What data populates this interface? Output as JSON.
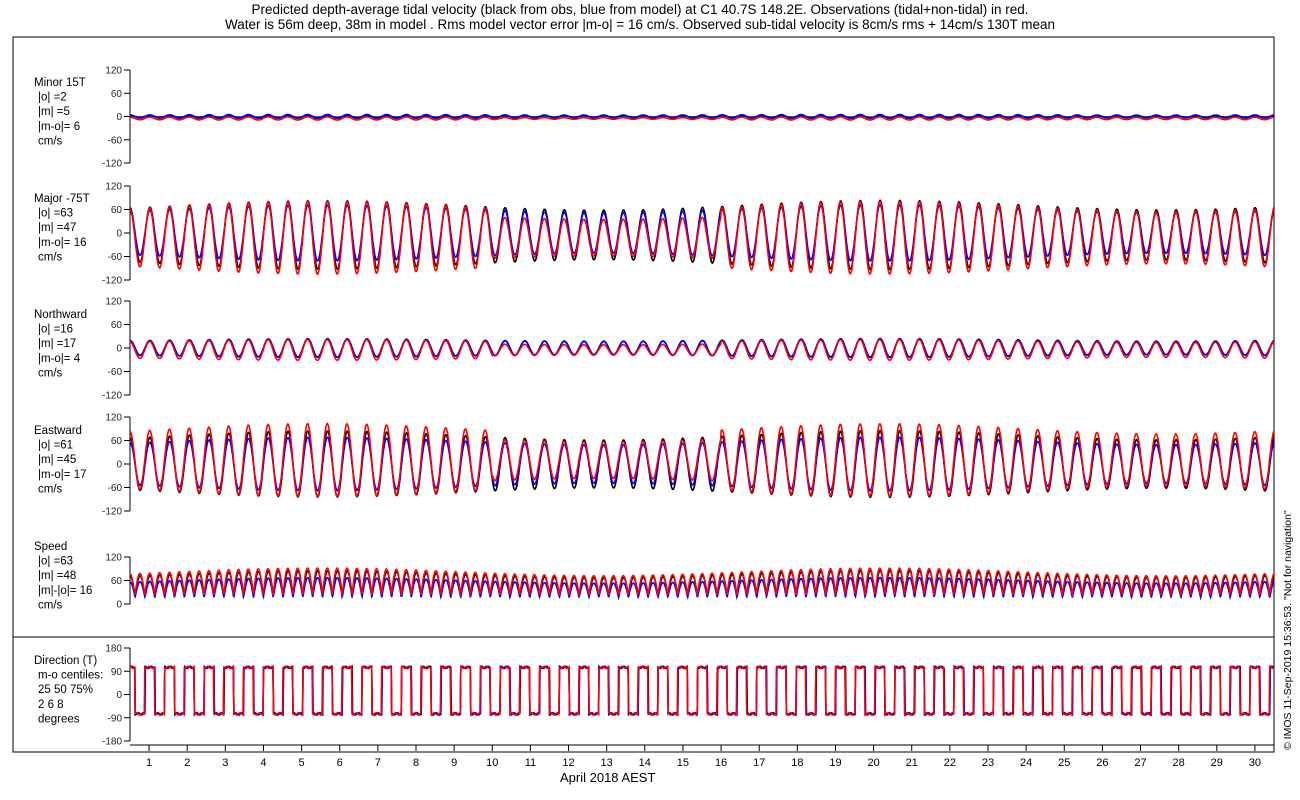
{
  "title": {
    "line1": "Predicted depth-average tidal velocity (black from obs, blue from model) at C1 40.7S 148.2E. Observations (tidal+non-tidal) in red.",
    "line2": "Water is 56m deep, 38m in model . Rms model vector error |m-o| = 16 cm/s. Observed sub-tidal velocity is 8cm/s rms + 14cm/s 130T mean"
  },
  "x_axis_label": "April 2018 AEST",
  "copyright": "© IMOS 11-Sep-2019 15:36:53. \"Not for navigation\"",
  "colors": {
    "observed_tidal": "#000000",
    "model": "#0000ff",
    "observed_total": "#ff0000"
  },
  "chart_data": [
    {
      "type": "line",
      "panel": "minor",
      "labels": [
        "Minor 15T",
        "|o| =2",
        "|m| =5",
        "|m-o|= 6",
        "cm/s"
      ],
      "ylim": [
        -120,
        120
      ],
      "yticks": [
        "120",
        "60",
        "0",
        "-60",
        "-120"
      ],
      "x": "day of April 2018, 0.5 to 30.5",
      "series": [
        {
          "color": "#000000",
          "amplitude": 2,
          "mean": 0
        },
        {
          "color": "#0000ff",
          "amplitude": 5,
          "mean": 0
        },
        {
          "color": "#ff0000",
          "amplitude": 4,
          "mean": -5
        }
      ]
    },
    {
      "type": "line",
      "panel": "major",
      "labels": [
        "Major -75T",
        "|o| =63",
        "|m| =47",
        "|m-o|= 16",
        "cm/s"
      ],
      "ylim": [
        -120,
        120
      ],
      "yticks": [
        "120",
        "60",
        "0",
        "-60",
        "-120"
      ],
      "series": [
        {
          "color": "#000000",
          "amplitude": 88,
          "mean": -5
        },
        {
          "color": "#0000ff",
          "amplitude": 68,
          "mean": 0
        },
        {
          "color": "#ff0000",
          "amplitude": 88,
          "mean": -12
        }
      ]
    },
    {
      "type": "line",
      "panel": "northward",
      "labels": [
        "Northward",
        "|o| =16",
        "|m| =17",
        "|m-o|= 4",
        "cm/s"
      ],
      "ylim": [
        -120,
        120
      ],
      "yticks": [
        "120",
        "60",
        "0",
        "-60",
        "-120"
      ],
      "series": [
        {
          "color": "#000000",
          "amplitude": 24,
          "mean": 0
        },
        {
          "color": "#0000ff",
          "amplitude": 22,
          "mean": 0
        },
        {
          "color": "#ff0000",
          "amplitude": 25,
          "mean": -5
        }
      ]
    },
    {
      "type": "line",
      "panel": "eastward",
      "labels": [
        "Eastward",
        "|o| =61",
        "|m| =45",
        "|m-o|= 17",
        "cm/s"
      ],
      "ylim": [
        -120,
        120
      ],
      "yticks": [
        "120",
        "60",
        "0",
        "-60",
        "-120"
      ],
      "series": [
        {
          "color": "#000000",
          "amplitude": 85,
          "mean": 0
        },
        {
          "color": "#0000ff",
          "amplitude": 65,
          "mean": 0
        },
        {
          "color": "#ff0000",
          "amplitude": 88,
          "mean": 10
        }
      ]
    },
    {
      "type": "line",
      "panel": "speed",
      "labels": [
        "Speed",
        "|o| =63",
        "|m| =48",
        "|m|-|o|= 16",
        "cm/s"
      ],
      "ylim": [
        0,
        120
      ],
      "yticks": [
        "120",
        "60",
        "0"
      ],
      "series": [
        {
          "color": "#000000",
          "amplitude": 85,
          "mean": 55
        },
        {
          "color": "#0000ff",
          "amplitude": 65,
          "mean": 40
        },
        {
          "color": "#ff0000",
          "amplitude": 88,
          "mean": 55
        }
      ]
    },
    {
      "type": "line",
      "panel": "direction",
      "labels": [
        "Direction (T)",
        "m-o centiles:",
        "25  50  75%",
        "2   6   8",
        "degrees"
      ],
      "ylim": [
        -180,
        180
      ],
      "yticks": [
        "180",
        "90",
        "0",
        "-90",
        "-180"
      ],
      "series": [
        {
          "color": "#000000",
          "levels": [
            105,
            -75
          ]
        },
        {
          "color": "#0000ff",
          "levels": [
            105,
            -75
          ]
        },
        {
          "color": "#ff0000",
          "levels": [
            105,
            -75
          ]
        }
      ]
    }
  ],
  "x_ticks": [
    "1",
    "2",
    "3",
    "4",
    "5",
    "6",
    "7",
    "8",
    "9",
    "10",
    "11",
    "12",
    "13",
    "14",
    "15",
    "16",
    "17",
    "18",
    "19",
    "20",
    "21",
    "22",
    "23",
    "24",
    "25",
    "26",
    "27",
    "28",
    "29",
    "30"
  ],
  "x_range": [
    0.5,
    30.5
  ],
  "tidal_period_hours": 12.42
}
